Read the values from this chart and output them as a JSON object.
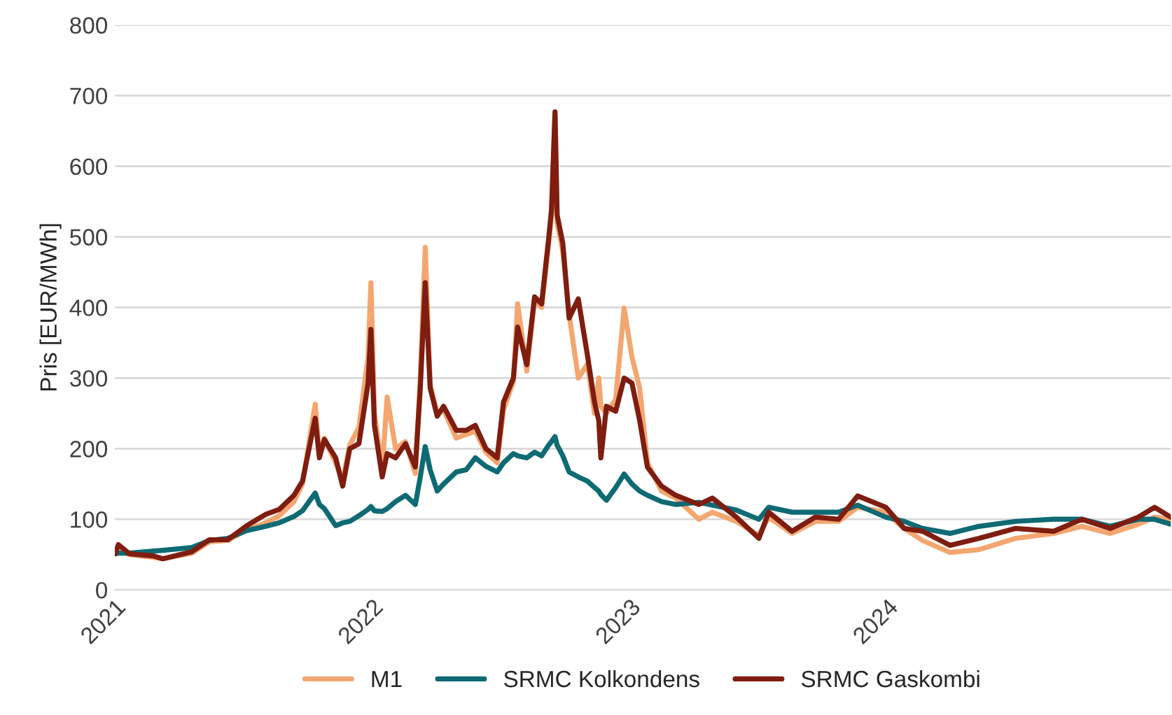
{
  "chart_data": {
    "type": "line",
    "ylabel": "Pris [EUR/MWh]",
    "x": [
      "2021-01-01",
      "2021-01-06",
      "2021-01-22",
      "2021-02-25",
      "2021-03-10",
      "2021-04-20",
      "2021-05-15",
      "2021-06-10",
      "2021-07-07",
      "2021-08-03",
      "2021-08-22",
      "2021-09-12",
      "2021-09-24",
      "2021-10-12",
      "2021-10-18",
      "2021-10-25",
      "2021-11-10",
      "2021-11-20",
      "2021-11-30",
      "2021-12-13",
      "2021-12-26",
      "2021-12-30",
      "2022-01-04",
      "2022-01-15",
      "2022-01-22",
      "2022-02-03",
      "2022-02-17",
      "2022-03-03",
      "2022-03-10",
      "2022-03-17",
      "2022-03-24",
      "2022-04-03",
      "2022-04-12",
      "2022-04-30",
      "2022-05-14",
      "2022-05-27",
      "2022-06-11",
      "2022-06-27",
      "2022-07-06",
      "2022-07-20",
      "2022-07-26",
      "2022-08-08",
      "2022-08-19",
      "2022-08-29",
      "2022-09-08",
      "2022-09-12",
      "2022-09-17",
      "2022-09-20",
      "2022-09-28",
      "2022-10-07",
      "2022-10-20",
      "2022-11-02",
      "2022-11-12",
      "2022-11-18",
      "2022-11-21",
      "2022-11-29",
      "2022-12-12",
      "2022-12-24",
      "2023-01-04",
      "2023-01-15",
      "2023-01-26",
      "2023-02-15",
      "2023-03-07",
      "2023-04-09",
      "2023-04-28",
      "2023-06-01",
      "2023-07-03",
      "2023-07-17",
      "2023-08-19",
      "2023-09-21",
      "2023-10-24",
      "2023-11-20",
      "2023-12-30",
      "2024-01-25",
      "2024-02-20",
      "2024-03-30",
      "2024-05-10",
      "2024-07-01",
      "2024-08-24",
      "2024-10-03",
      "2024-11-12",
      "2024-12-22",
      "2025-01-14",
      "2025-02-06"
    ],
    "series": [
      {
        "name": "M1",
        "color": "#f4a671",
        "values": [
          52,
          55,
          50,
          46,
          44,
          52,
          68,
          70,
          85,
          95,
          105,
          125,
          150,
          263,
          190,
          215,
          180,
          155,
          205,
          230,
          330,
          435,
          250,
          170,
          273,
          200,
          210,
          165,
          300,
          485,
          290,
          250,
          255,
          215,
          220,
          225,
          195,
          180,
          255,
          295,
          405,
          310,
          410,
          400,
          490,
          530,
          670,
          520,
          480,
          390,
          300,
          320,
          250,
          300,
          260,
          250,
          270,
          399,
          330,
          286,
          180,
          140,
          130,
          100,
          110,
          97,
          77,
          103,
          80,
          97,
          97,
          117,
          110,
          87,
          70,
          53,
          57,
          73,
          80,
          90,
          80,
          93,
          103,
          100
        ]
      },
      {
        "name": "SRMC Kolkondens",
        "color": "#0e6a73",
        "values": [
          51,
          52,
          52,
          55,
          56,
          60,
          70,
          73,
          84,
          90,
          95,
          104,
          112,
          137,
          121,
          115,
          91,
          95,
          97,
          105,
          114,
          118,
          112,
          111,
          115,
          125,
          134,
          121,
          160,
          203,
          170,
          140,
          150,
          167,
          170,
          187,
          175,
          167,
          180,
          193,
          190,
          187,
          195,
          190,
          205,
          210,
          217,
          205,
          190,
          167,
          160,
          154,
          145,
          140,
          135,
          127,
          145,
          164,
          150,
          140,
          134,
          125,
          121,
          124,
          120,
          113,
          100,
          117,
          110,
          110,
          110,
          120,
          103,
          97,
          87,
          80,
          90,
          97,
          100,
          100,
          90,
          100,
          100,
          93
        ]
      },
      {
        "name": "SRMC Gaskombi",
        "color": "#7f1d10",
        "values": [
          51,
          64,
          51,
          48,
          44,
          54,
          71,
          71,
          91,
          107,
          114,
          134,
          154,
          243,
          187,
          213,
          187,
          147,
          200,
          207,
          293,
          369,
          233,
          160,
          193,
          187,
          207,
          174,
          286,
          435,
          286,
          246,
          260,
          226,
          226,
          233,
          200,
          187,
          266,
          300,
          372,
          319,
          415,
          405,
          498,
          538,
          677,
          531,
          491,
          385,
          412,
          332,
          266,
          240,
          187,
          260,
          253,
          300,
          293,
          240,
          174,
          147,
          134,
          121,
          130,
          103,
          73,
          110,
          83,
          103,
          100,
          133,
          117,
          87,
          83,
          63,
          73,
          87,
          83,
          100,
          87,
          103,
          117,
          103
        ]
      }
    ],
    "xlim": [
      "2021-01-01",
      "2025-02-06"
    ],
    "xticks": [
      {
        "value": "2021-01-01",
        "label": "2021"
      },
      {
        "value": "2022-01-01",
        "label": "2022"
      },
      {
        "value": "2023-01-01",
        "label": "2023"
      },
      {
        "value": "2024-01-01",
        "label": "2024"
      }
    ],
    "ylim": [
      0,
      800
    ],
    "yticks": [
      0,
      100,
      200,
      300,
      400,
      500,
      600,
      700,
      800
    ],
    "grid": "y",
    "legend": "bottom",
    "marker": "none",
    "line_style": "solid"
  }
}
